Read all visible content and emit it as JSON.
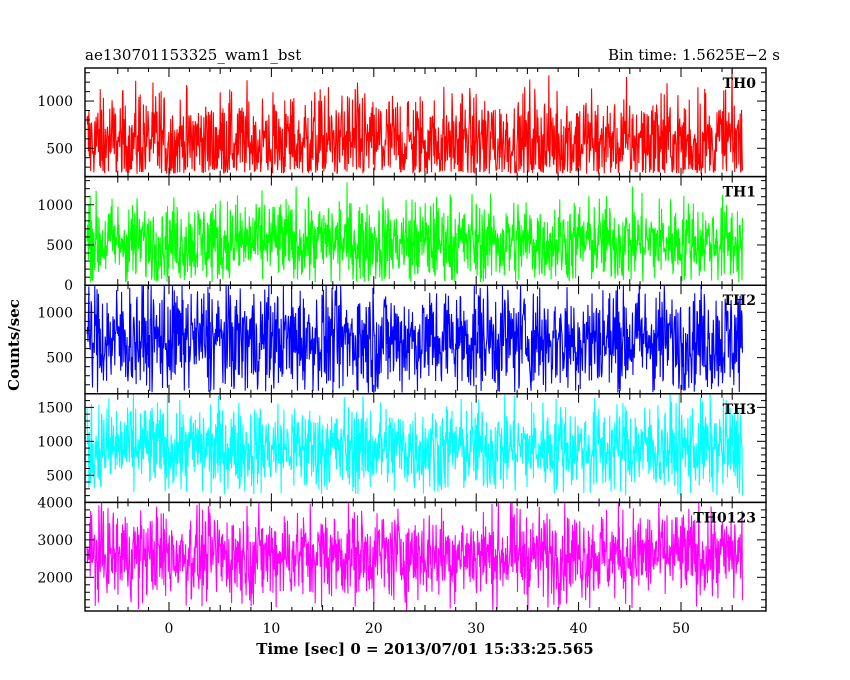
{
  "header": {
    "left": "ae130701153325_wam1_bst",
    "right": "Bin time: 1.5625E−2 s"
  },
  "chart_data": {
    "type": "line",
    "xlabel": "Time [sec] 0 = 2013/07/01 15:33:25.565",
    "ylabel": "Counts/sec",
    "xlim": [
      -8.2,
      58.3
    ],
    "x_range_data": [
      -8.0,
      56.0
    ],
    "x_ticks": [
      0,
      10,
      20,
      30,
      40,
      50
    ],
    "x_tick_labels": [
      "0",
      "10",
      "20",
      "30",
      "40",
      "50"
    ],
    "panels": [
      {
        "name": "TH0",
        "color": "#ff0000",
        "ylim": [
          200,
          1350
        ],
        "y_ticks": [
          500,
          1000
        ],
        "y_tick_labels": [
          "500",
          "1000"
        ],
        "mean": 560,
        "spread": 270,
        "lower": 230,
        "upper": 1350
      },
      {
        "name": "TH1",
        "color": "#00ff00",
        "ylim": [
          0,
          1350
        ],
        "y_ticks": [
          0,
          500,
          1000
        ],
        "y_tick_labels": [
          "0",
          "500",
          "1000"
        ],
        "mean": 540,
        "spread": 260,
        "lower": 30,
        "upper": 1350
      },
      {
        "name": "TH2",
        "color": "#0000ff",
        "ylim": [
          100,
          1300
        ],
        "y_ticks": [
          500,
          1000
        ],
        "y_tick_labels": [
          "500",
          "1000"
        ],
        "mean": 700,
        "spread": 300,
        "lower": 110,
        "upper": 1300
      },
      {
        "name": "TH3",
        "color": "#00ffff",
        "ylim": [
          100,
          1700
        ],
        "y_ticks": [
          500,
          1000,
          1500
        ],
        "y_tick_labels": [
          "500",
          "1000",
          "1500"
        ],
        "mean": 900,
        "spread": 330,
        "lower": 200,
        "upper": 1700
      },
      {
        "name": "TH0123",
        "color": "#ff00ff",
        "ylim": [
          1100,
          4000
        ],
        "y_ticks": [
          2000,
          3000,
          4000
        ],
        "y_tick_labels": [
          "2000",
          "3000",
          "4000"
        ],
        "mean": 2600,
        "spread": 600,
        "lower": 1100,
        "upper": 4000
      }
    ]
  }
}
